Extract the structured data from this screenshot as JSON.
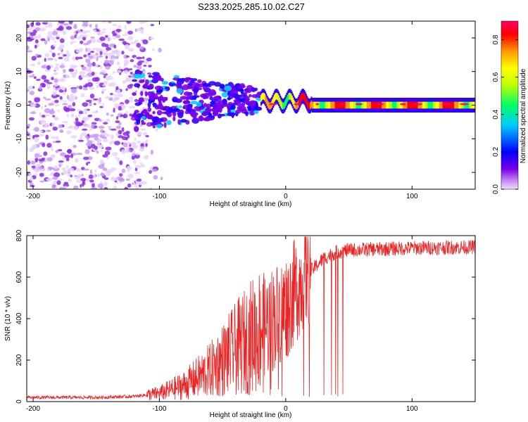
{
  "title": "S233.2025.285.10.02.C27",
  "chart_data": [
    {
      "type": "heatmap",
      "name": "spectrogram",
      "xlabel": "Height of straight line (km)",
      "ylabel": "Frequency (Hz)",
      "xlim": [
        -205,
        150
      ],
      "ylim": [
        -25,
        25
      ],
      "xticks": [
        -200,
        -100,
        0,
        100
      ],
      "yticks": [
        -20,
        -10,
        0,
        10,
        20
      ],
      "colorbar": {
        "label": "Normalized spectral amplitude",
        "range": [
          0,
          0.9
        ],
        "ticks": [
          0.0,
          0.2,
          0.4,
          0.6,
          0.8
        ],
        "colors": [
          "#f3ddfb",
          "#7a00e8",
          "#0000ff",
          "#00ccff",
          "#00ff66",
          "#bfff00",
          "#ffff00",
          "#ff9900",
          "#ff0000",
          "#ff0066"
        ]
      },
      "regions": [
        {
          "description": "scattered noise",
          "x_range": [
            -205,
            -110
          ],
          "freq_range": [
            -25,
            25
          ],
          "amplitude": 0.05
        },
        {
          "description": "transition clustered energy",
          "x_range": [
            -120,
            -20
          ],
          "freq_range": [
            -10,
            9
          ],
          "amplitude": 0.15
        },
        {
          "description": "narrow band carrier",
          "x_range": [
            -20,
            150
          ],
          "freq_range": [
            -2,
            2
          ],
          "amplitude": 0.8
        }
      ]
    },
    {
      "type": "line",
      "name": "snr",
      "xlabel": "Height of straight line (km)",
      "ylabel": "SNR (10 * v/v)",
      "xlim": [
        -205,
        150
      ],
      "ylim": [
        0,
        800
      ],
      "xticks": [
        -200,
        -100,
        0,
        100
      ],
      "yticks": [
        0,
        200,
        400,
        600,
        800
      ],
      "color": "#ee2222",
      "series": [
        {
          "name": "SNR",
          "x": [
            -205,
            -150,
            -120,
            -100,
            -80,
            -60,
            -40,
            -20,
            0,
            10,
            20,
            30,
            40,
            50,
            100,
            150
          ],
          "values": [
            20,
            20,
            25,
            40,
            80,
            150,
            250,
            350,
            450,
            560,
            630,
            690,
            720,
            730,
            740,
            745
          ]
        }
      ]
    }
  ]
}
